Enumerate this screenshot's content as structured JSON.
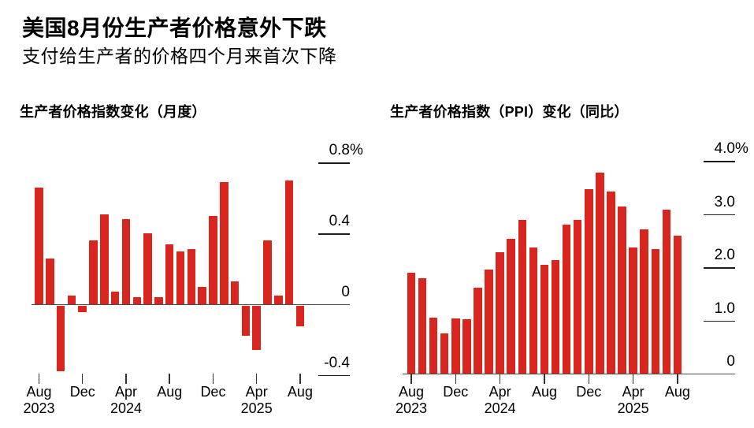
{
  "page": {
    "background": "#ffffff",
    "accent_red": "#d8261f",
    "axis_color": "#4a4a4a",
    "gridline_color": "#1a1a1a"
  },
  "header": {
    "title": "美国8月份生产者价格意外下跌",
    "subtitle": "支付给生产者的价格四个月来首次下降"
  },
  "chart_data": [
    {
      "id": "ppi-mom",
      "type": "bar",
      "title": "生产者价格指数变化（月度）",
      "unit": "%",
      "bar_color": "#d8261f",
      "ylim": [
        -0.55,
        0.9
      ],
      "grid": "right-ticks-only",
      "legend": null,
      "x": [
        "Aug 2023",
        "Sep 2023",
        "Oct 2023",
        "Nov 2023",
        "Dec 2023",
        "Jan 2024",
        "Feb 2024",
        "Mar 2024",
        "Apr 2024",
        "May 2024",
        "Jun 2024",
        "Jul 2024",
        "Aug 2024",
        "Sep 2024",
        "Oct 2024",
        "Nov 2024",
        "Dec 2024",
        "Jan 2025",
        "Feb 2025",
        "Mar 2025",
        "Apr 2025",
        "May 2025",
        "Jun 2025",
        "Jul 2025",
        "Aug 2025"
      ],
      "values": [
        0.66,
        0.26,
        -0.37,
        0.05,
        -0.04,
        0.36,
        0.51,
        0.07,
        0.48,
        0.04,
        0.4,
        0.04,
        0.34,
        0.3,
        0.31,
        0.1,
        0.5,
        0.69,
        0.13,
        -0.17,
        -0.25,
        0.36,
        0.05,
        0.7,
        -0.12
      ],
      "y_ticks": [
        {
          "v": 0.8,
          "label": "0.8",
          "suffix": "%"
        },
        {
          "v": 0.4,
          "label": "0.4"
        },
        {
          "v": 0,
          "label": "0"
        },
        {
          "v": -0.4,
          "label": "-0.4"
        }
      ],
      "x_ticks": [
        {
          "label": "Aug",
          "year": "2023",
          "index": 0
        },
        {
          "label": "Dec",
          "index": 4
        },
        {
          "label": "Apr",
          "year": "2024",
          "index": 8
        },
        {
          "label": "Aug",
          "index": 12
        },
        {
          "label": "Dec",
          "index": 16
        },
        {
          "label": "Apr",
          "year": "2025",
          "index": 20
        },
        {
          "label": "Aug",
          "index": 24
        }
      ]
    },
    {
      "id": "ppi-yoy",
      "type": "bar",
      "title": "生产者价格指数（PPI）变化（同比）",
      "unit": "%",
      "bar_color": "#d8261f",
      "ylim": [
        0,
        4.2
      ],
      "grid": "right-ticks-only",
      "legend": null,
      "x": [
        "Aug 2023",
        "Sep 2023",
        "Oct 2023",
        "Nov 2023",
        "Dec 2023",
        "Jan 2024",
        "Feb 2024",
        "Mar 2024",
        "Apr 2024",
        "May 2024",
        "Jun 2024",
        "Jul 2024",
        "Aug 2024",
        "Sep 2024",
        "Oct 2024",
        "Nov 2024",
        "Dec 2024",
        "Jan 2025",
        "Feb 2025",
        "Mar 2025",
        "Apr 2025",
        "May 2025",
        "Jun 2025",
        "Jul 2025",
        "Aug 2025"
      ],
      "values": [
        1.9,
        1.8,
        1.06,
        0.75,
        1.04,
        1.03,
        1.61,
        1.96,
        2.28,
        2.53,
        2.9,
        2.37,
        2.05,
        2.13,
        2.81,
        2.89,
        3.47,
        3.79,
        3.43,
        3.15,
        2.37,
        2.71,
        2.35,
        3.08,
        2.59
      ],
      "y_ticks": [
        {
          "v": 4.0,
          "label": "4.0",
          "suffix": "%"
        },
        {
          "v": 3.0,
          "label": "3.0"
        },
        {
          "v": 2.0,
          "label": "2.0"
        },
        {
          "v": 1.0,
          "label": "1.0"
        },
        {
          "v": 0,
          "label": "0"
        }
      ],
      "x_ticks": [
        {
          "label": "Aug",
          "year": "2023",
          "index": 0
        },
        {
          "label": "Dec",
          "index": 4
        },
        {
          "label": "Apr",
          "year": "2024",
          "index": 8
        },
        {
          "label": "Aug",
          "index": 12
        },
        {
          "label": "Dec",
          "index": 16
        },
        {
          "label": "Apr",
          "year": "2025",
          "index": 20
        },
        {
          "label": "Aug",
          "index": 24
        }
      ]
    }
  ]
}
